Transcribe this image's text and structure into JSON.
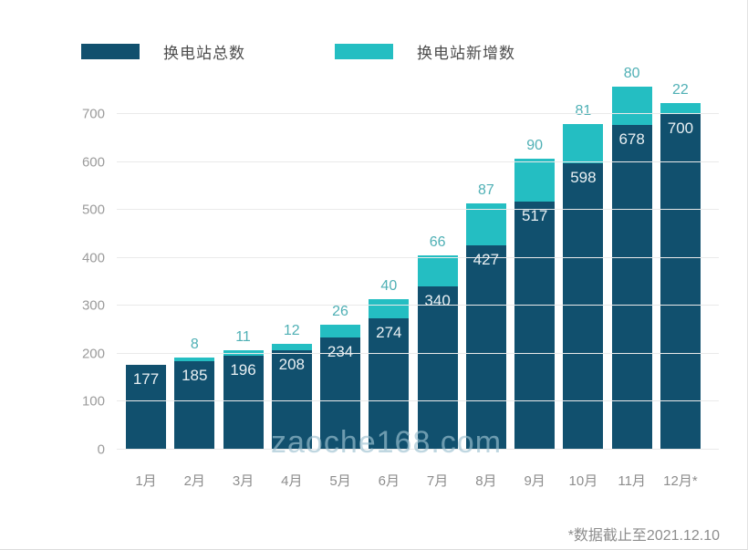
{
  "legend": [
    {
      "label": "换电站总数",
      "color": "#11506e"
    },
    {
      "label": "换电站新增数",
      "color": "#24bec2"
    }
  ],
  "chart_data": {
    "type": "bar",
    "stacked": true,
    "title": "",
    "xlabel": "",
    "ylabel": "",
    "categories": [
      "1月",
      "2月",
      "3月",
      "4月",
      "5月",
      "6月",
      "7月",
      "8月",
      "9月",
      "10月",
      "11月",
      "12月*"
    ],
    "series": [
      {
        "name": "换电站总数",
        "color": "#11506e",
        "values": [
          177,
          185,
          196,
          208,
          234,
          274,
          340,
          427,
          517,
          598,
          678,
          700
        ]
      },
      {
        "name": "换电站新增数",
        "color": "#24bec2",
        "values": [
          null,
          8,
          11,
          12,
          26,
          40,
          66,
          87,
          90,
          81,
          80,
          22
        ]
      }
    ],
    "ylim": [
      0,
      700
    ],
    "yticks": [
      0,
      100,
      200,
      300,
      400,
      500,
      600,
      700
    ],
    "grid": true,
    "legend_position": "top-left"
  },
  "watermark": "zaoche168.com",
  "footnote": "*数据截止至2021.12.10"
}
